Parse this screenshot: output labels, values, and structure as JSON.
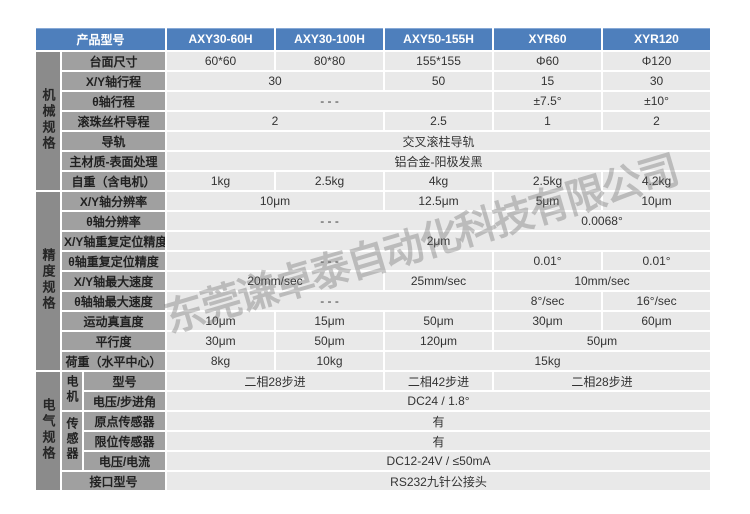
{
  "watermark": "东莞谦卓泰自动化科技有限公司",
  "colors": {
    "header_blue": "#4e7fbc",
    "group_gray": "#8b8b8b",
    "label_gray": "#a0a0a0",
    "cell_gray": "#e9e9e9",
    "watermark_gray": "#696969"
  },
  "table": {
    "header": {
      "label": "产品型号",
      "models": [
        "AXY30-60H",
        "AXY30-100H",
        "AXY50-155H",
        "XYR60",
        "XYR120"
      ]
    },
    "sections": [
      {
        "group": "机械规格",
        "rows": [
          {
            "label": "台面尺寸",
            "label_span": 2,
            "cells": [
              {
                "text": "60*60",
                "span": 1
              },
              {
                "text": "80*80",
                "span": 1
              },
              {
                "text": "155*155",
                "span": 1
              },
              {
                "text": "Φ60",
                "span": 1
              },
              {
                "text": "Φ120",
                "span": 1
              }
            ]
          },
          {
            "label": "X/Y轴行程",
            "label_span": 2,
            "cells": [
              {
                "text": "30",
                "span": 2
              },
              {
                "text": "50",
                "span": 1
              },
              {
                "text": "15",
                "span": 1
              },
              {
                "text": "30",
                "span": 1
              }
            ]
          },
          {
            "label": "θ轴行程",
            "label_span": 2,
            "cells": [
              {
                "text": "- - -",
                "span": 3
              },
              {
                "text": "±7.5°",
                "span": 1
              },
              {
                "text": "±10°",
                "span": 1
              }
            ]
          },
          {
            "label": "滚珠丝杆导程",
            "label_span": 2,
            "cells": [
              {
                "text": "2",
                "span": 2
              },
              {
                "text": "2.5",
                "span": 1
              },
              {
                "text": "1",
                "span": 1
              },
              {
                "text": "2",
                "span": 1
              }
            ]
          },
          {
            "label": "导轨",
            "label_span": 2,
            "cells": [
              {
                "text": "交叉滚柱导轨",
                "span": 5
              }
            ]
          },
          {
            "label": "主材质-表面处理",
            "label_span": 2,
            "cells": [
              {
                "text": "铝合金-阳极发黑",
                "span": 5
              }
            ]
          },
          {
            "label": "自重（含电机）",
            "label_span": 2,
            "cells": [
              {
                "text": "1kg",
                "span": 1
              },
              {
                "text": "2.5kg",
                "span": 1
              },
              {
                "text": "4kg",
                "span": 1
              },
              {
                "text": "2.5kg",
                "span": 1
              },
              {
                "text": "4.2kg",
                "span": 1
              }
            ]
          }
        ]
      },
      {
        "group": "精度规格",
        "rows": [
          {
            "label": "X/Y轴分辨率",
            "label_span": 2,
            "cells": [
              {
                "text": "10μm",
                "span": 2
              },
              {
                "text": "12.5μm",
                "span": 1
              },
              {
                "text": "5μm",
                "span": 1
              },
              {
                "text": "10μm",
                "span": 1
              }
            ]
          },
          {
            "label": "θ轴分辨率",
            "label_span": 2,
            "cells": [
              {
                "text": "- - -",
                "span": 3
              },
              {
                "text": "0.0068°",
                "span": 2
              }
            ]
          },
          {
            "label": "X/Y轴重复定位精度",
            "label_span": 2,
            "cells": [
              {
                "text": "2μm",
                "span": 5
              }
            ]
          },
          {
            "label": "θ轴重复定位精度",
            "label_span": 2,
            "cells": [
              {
                "text": "- - -",
                "span": 3
              },
              {
                "text": "0.01°",
                "span": 1
              },
              {
                "text": "0.01°",
                "span": 1
              }
            ]
          },
          {
            "label": "X/Y轴最大速度",
            "label_span": 2,
            "cells": [
              {
                "text": "20mm/sec",
                "span": 2
              },
              {
                "text": "25mm/sec",
                "span": 1
              },
              {
                "text": "10mm/sec",
                "span": 2
              }
            ]
          },
          {
            "label": "θ轴轴最大速度",
            "label_span": 2,
            "cells": [
              {
                "text": "- - -",
                "span": 3
              },
              {
                "text": "8°/sec",
                "span": 1
              },
              {
                "text": "16°/sec",
                "span": 1
              }
            ]
          },
          {
            "label": "运动真直度",
            "label_span": 2,
            "cells": [
              {
                "text": "10μm",
                "span": 1
              },
              {
                "text": "15μm",
                "span": 1
              },
              {
                "text": "50μm",
                "span": 1
              },
              {
                "text": "30μm",
                "span": 1
              },
              {
                "text": "60μm",
                "span": 1
              }
            ]
          },
          {
            "label": "平行度",
            "label_span": 2,
            "cells": [
              {
                "text": "30μm",
                "span": 1
              },
              {
                "text": "50μm",
                "span": 1
              },
              {
                "text": "120μm",
                "span": 1
              },
              {
                "text": "50μm",
                "span": 2
              }
            ]
          },
          {
            "label": "荷重（水平中心）",
            "label_span": 2,
            "cells": [
              {
                "text": "8kg",
                "span": 1
              },
              {
                "text": "10kg",
                "span": 1
              },
              {
                "text": "15kg",
                "span": 3
              }
            ]
          }
        ]
      },
      {
        "group": "电气规格",
        "rows": [
          {
            "label": "型号",
            "label_span": 1,
            "subgroup": {
              "label": "电机",
              "rowspan": 2
            },
            "cells": [
              {
                "text": "二相28步进",
                "span": 2
              },
              {
                "text": "二相42步进",
                "span": 1
              },
              {
                "text": "二相28步进",
                "span": 2
              }
            ]
          },
          {
            "label": "电压/步进角",
            "label_span": 1,
            "cells": [
              {
                "text": "DC24 / 1.8°",
                "span": 5
              }
            ]
          },
          {
            "label": "原点传感器",
            "label_span": 1,
            "subgroup": {
              "label": "传感器",
              "rowspan": 3
            },
            "cells": [
              {
                "text": "有",
                "span": 5
              }
            ]
          },
          {
            "label": "限位传感器",
            "label_span": 1,
            "cells": [
              {
                "text": "有",
                "span": 5
              }
            ]
          },
          {
            "label": "电压/电流",
            "label_span": 1,
            "cells": [
              {
                "text": "DC12-24V / ≤50mA",
                "span": 5
              }
            ]
          },
          {
            "label": "接口型号",
            "label_span": 2,
            "cells": [
              {
                "text": "RS232九针公接头",
                "span": 5
              }
            ]
          }
        ]
      }
    ]
  }
}
